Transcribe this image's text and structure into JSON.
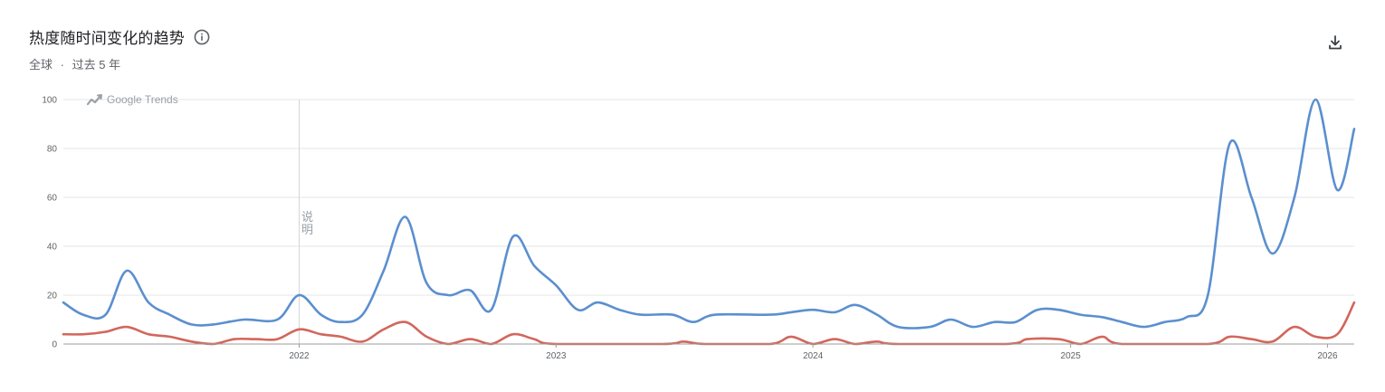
{
  "header": {
    "title": "热度随时间变化的趋势",
    "region": "全球",
    "separator": "·",
    "period": "过去 5 年"
  },
  "icons": {
    "info": "info-icon",
    "download": "download-icon",
    "watermark": "google-trends-logo-icon"
  },
  "watermark_text": "Google Trends",
  "annotation": {
    "label": "说明",
    "at": "2022-01-01"
  },
  "colors": {
    "series1": "#5b8fcf",
    "series2": "#d2675c",
    "grid": "#e6e6e6",
    "axis": "#5f6368"
  },
  "chart_data": {
    "type": "line",
    "xlim": [
      "2021-01-31",
      "2026-02-08"
    ],
    "ylim": [
      0,
      100
    ],
    "yticks": [
      0,
      20,
      40,
      60,
      80,
      100
    ],
    "xticks": [
      {
        "label": "2022",
        "date": "2022-01-01"
      },
      {
        "label": "2023",
        "date": "2023-01-01"
      },
      {
        "label": "2024",
        "date": "2024-01-01"
      },
      {
        "label": "2025",
        "date": "2025-01-01"
      },
      {
        "label": "2026",
        "date": "2026-01-01"
      }
    ],
    "grid": true,
    "series": [
      {
        "points": [
          [
            "2021-01-31",
            17
          ],
          [
            "2021-02-28",
            12
          ],
          [
            "2021-04-01",
            12
          ],
          [
            "2021-05-01",
            30
          ],
          [
            "2021-06-01",
            17
          ],
          [
            "2021-07-01",
            12
          ],
          [
            "2021-08-01",
            8
          ],
          [
            "2021-09-01",
            8
          ],
          [
            "2021-10-15",
            10
          ],
          [
            "2021-12-01",
            10
          ],
          [
            "2022-01-01",
            20
          ],
          [
            "2022-02-01",
            12
          ],
          [
            "2022-03-01",
            9
          ],
          [
            "2022-04-01",
            12
          ],
          [
            "2022-05-01",
            30
          ],
          [
            "2022-06-01",
            52
          ],
          [
            "2022-07-01",
            25
          ],
          [
            "2022-08-01",
            20
          ],
          [
            "2022-09-01",
            22
          ],
          [
            "2022-10-01",
            14
          ],
          [
            "2022-11-01",
            44
          ],
          [
            "2022-12-01",
            32
          ],
          [
            "2023-01-01",
            24
          ],
          [
            "2023-02-01",
            14
          ],
          [
            "2023-03-01",
            17
          ],
          [
            "2023-04-01",
            14
          ],
          [
            "2023-05-01",
            12
          ],
          [
            "2023-06-15",
            12
          ],
          [
            "2023-07-15",
            9
          ],
          [
            "2023-08-15",
            12
          ],
          [
            "2023-11-01",
            12
          ],
          [
            "2023-12-01",
            13
          ],
          [
            "2024-01-01",
            14
          ],
          [
            "2024-02-01",
            13
          ],
          [
            "2024-03-01",
            16
          ],
          [
            "2024-04-01",
            12
          ],
          [
            "2024-05-01",
            7
          ],
          [
            "2024-06-15",
            7
          ],
          [
            "2024-07-15",
            10
          ],
          [
            "2024-08-15",
            7
          ],
          [
            "2024-09-15",
            9
          ],
          [
            "2024-10-15",
            9
          ],
          [
            "2024-11-15",
            14
          ],
          [
            "2024-12-15",
            14
          ],
          [
            "2025-01-15",
            12
          ],
          [
            "2025-02-15",
            11
          ],
          [
            "2025-03-15",
            9
          ],
          [
            "2025-04-15",
            7
          ],
          [
            "2025-05-15",
            9
          ],
          [
            "2025-06-15",
            11
          ],
          [
            "2025-07-15",
            20
          ],
          [
            "2025-08-15",
            82
          ],
          [
            "2025-09-15",
            60
          ],
          [
            "2025-10-15",
            37
          ],
          [
            "2025-11-15",
            60
          ],
          [
            "2025-12-15",
            100
          ],
          [
            "2026-01-15",
            63
          ],
          [
            "2026-02-08",
            88
          ]
        ]
      },
      {
        "points": [
          [
            "2021-01-31",
            4
          ],
          [
            "2021-03-01",
            4
          ],
          [
            "2021-04-01",
            5
          ],
          [
            "2021-05-01",
            7
          ],
          [
            "2021-06-01",
            4
          ],
          [
            "2021-07-01",
            3
          ],
          [
            "2021-08-01",
            1
          ],
          [
            "2021-09-01",
            0
          ],
          [
            "2021-10-01",
            2
          ],
          [
            "2021-11-01",
            2
          ],
          [
            "2021-12-01",
            2
          ],
          [
            "2022-01-01",
            6
          ],
          [
            "2022-02-01",
            4
          ],
          [
            "2022-03-01",
            3
          ],
          [
            "2022-04-01",
            1
          ],
          [
            "2022-05-01",
            6
          ],
          [
            "2022-06-01",
            9
          ],
          [
            "2022-07-01",
            3
          ],
          [
            "2022-08-01",
            0
          ],
          [
            "2022-09-01",
            2
          ],
          [
            "2022-10-01",
            0
          ],
          [
            "2022-11-01",
            4
          ],
          [
            "2022-12-01",
            2
          ],
          [
            "2023-01-01",
            0
          ],
          [
            "2023-06-01",
            0
          ],
          [
            "2023-07-01",
            1
          ],
          [
            "2023-08-01",
            0
          ],
          [
            "2023-11-01",
            0
          ],
          [
            "2023-12-01",
            3
          ],
          [
            "2024-01-01",
            0
          ],
          [
            "2024-02-01",
            2
          ],
          [
            "2024-03-01",
            0
          ],
          [
            "2024-04-01",
            1
          ],
          [
            "2024-05-01",
            0
          ],
          [
            "2024-10-01",
            0
          ],
          [
            "2024-11-01",
            2
          ],
          [
            "2024-12-15",
            2
          ],
          [
            "2025-01-15",
            0
          ],
          [
            "2025-02-15",
            3
          ],
          [
            "2025-03-15",
            0
          ],
          [
            "2025-07-15",
            0
          ],
          [
            "2025-08-15",
            3
          ],
          [
            "2025-09-15",
            2
          ],
          [
            "2025-10-15",
            1
          ],
          [
            "2025-11-15",
            7
          ],
          [
            "2025-12-15",
            3
          ],
          [
            "2026-01-15",
            4
          ],
          [
            "2026-02-08",
            17
          ]
        ]
      }
    ]
  }
}
